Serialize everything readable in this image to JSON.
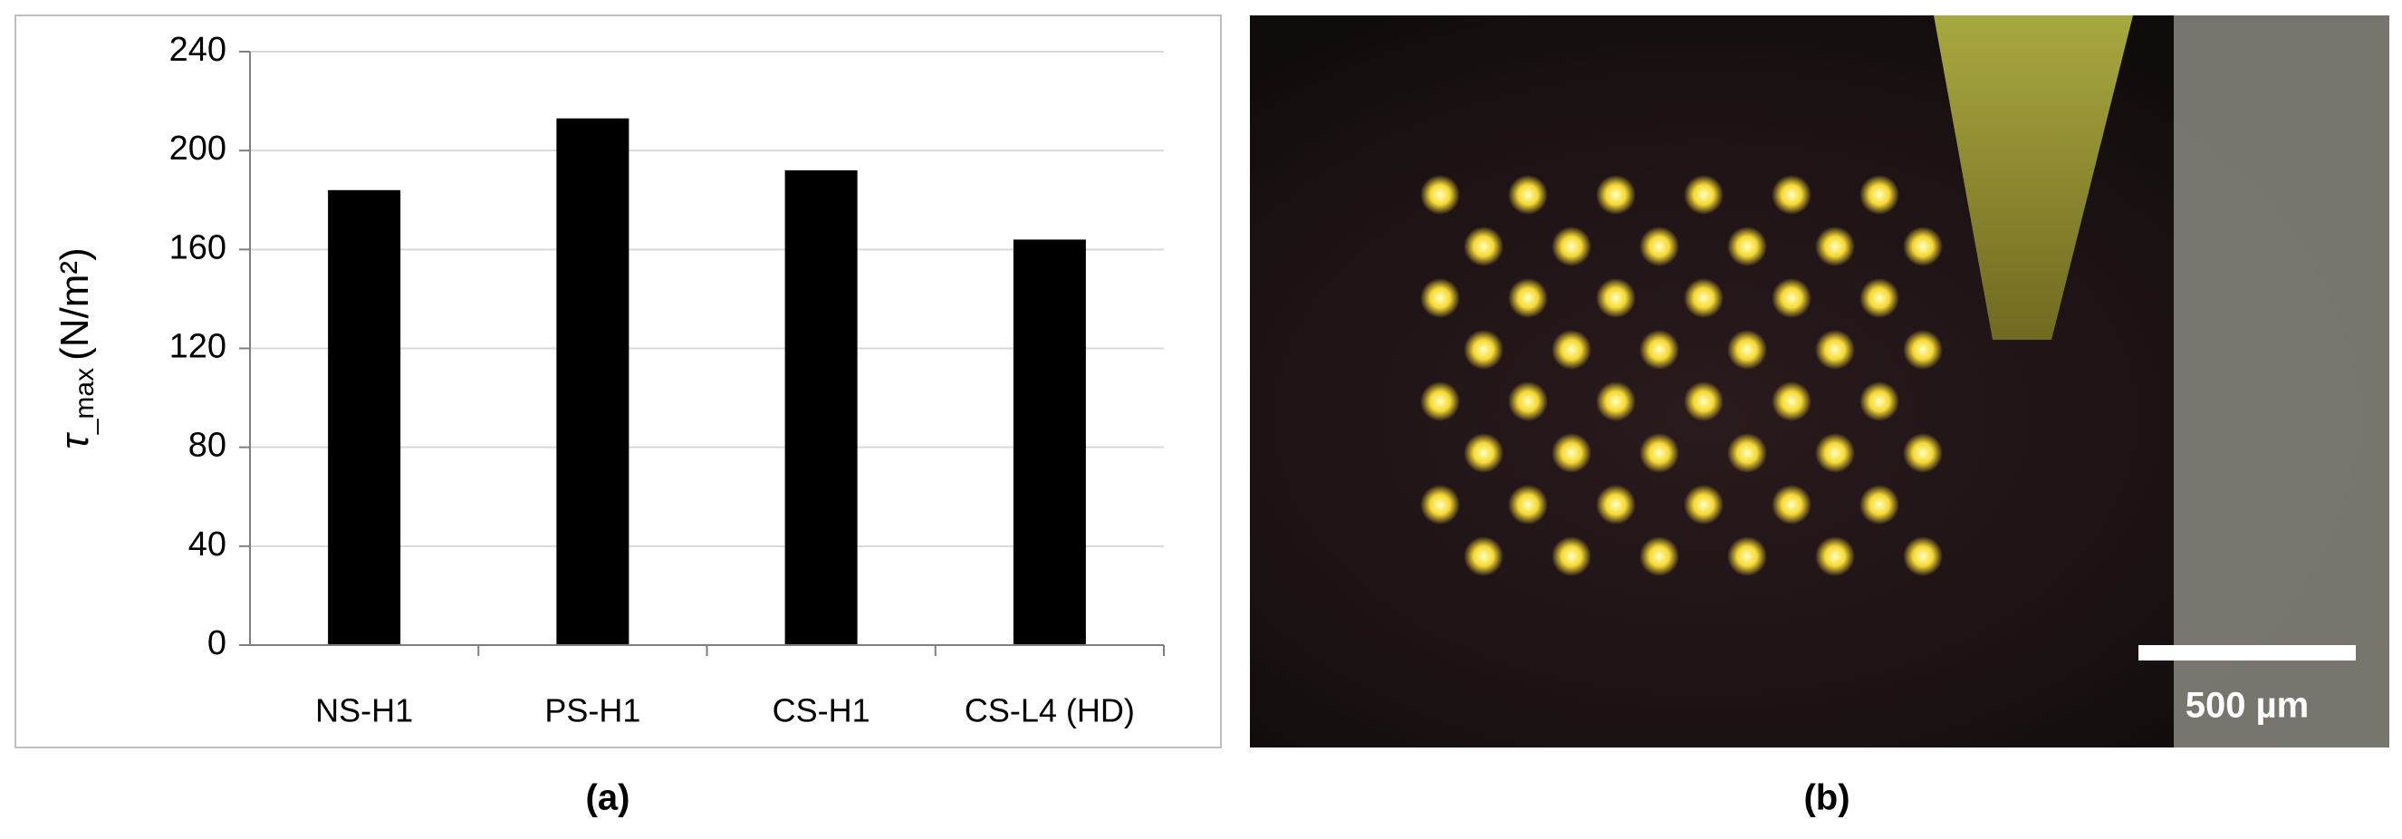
{
  "chart_data": {
    "type": "bar",
    "y_label": {
      "symbol": "τ",
      "subscript": "_max",
      "unit": "(N/m²)"
    },
    "categories": [
      "NS-H1",
      "PS-H1",
      "CS-H1",
      "CS-L4 (HD)"
    ],
    "values": [
      184,
      213,
      192,
      164
    ],
    "color": "#000000",
    "ylim": [
      0,
      240
    ],
    "yticks": [
      0,
      40,
      80,
      120,
      160,
      200,
      240
    ],
    "grid": true
  },
  "figure": {
    "panel_a_caption": "(a)",
    "panel_b_caption": "(b)",
    "scale_bar_label": "500 µm"
  }
}
